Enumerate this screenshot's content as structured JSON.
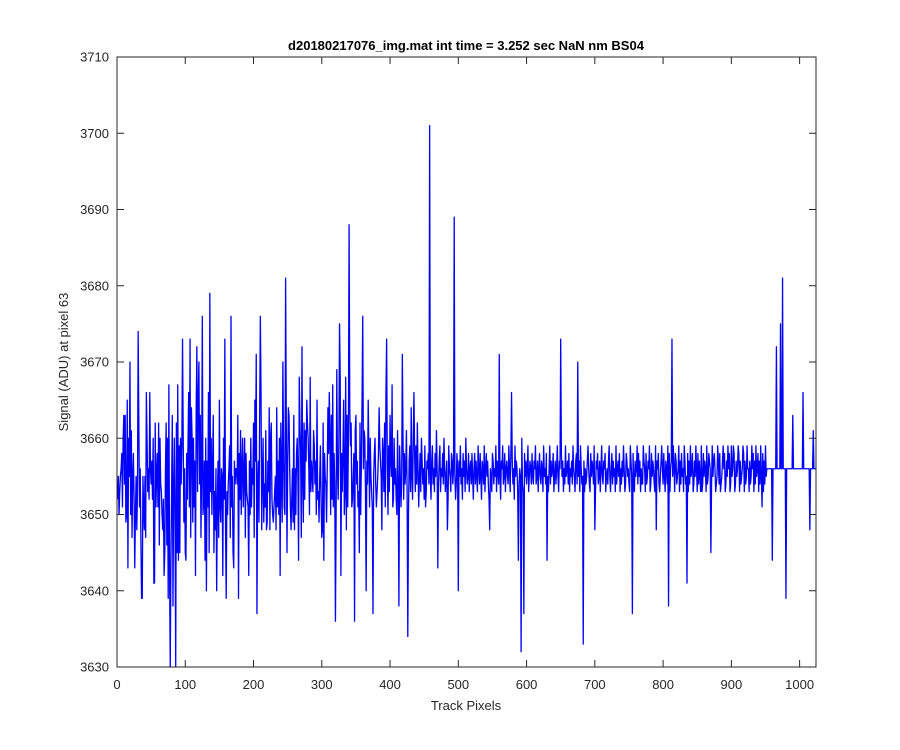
{
  "chart_data": {
    "type": "line",
    "title": "d20180217076_img.mat int time = 3.252 sec  NaN nm BS04",
    "xlabel": "Track Pixels",
    "ylabel": "Signal (ADU) at pixel 63",
    "xlim": [
      0,
      1024
    ],
    "ylim": [
      3630,
      3710
    ],
    "xticks": [
      0,
      100,
      200,
      300,
      400,
      500,
      600,
      700,
      800,
      900,
      1000
    ],
    "yticks": [
      3630,
      3640,
      3650,
      3660,
      3670,
      3680,
      3690,
      3700,
      3710
    ],
    "grid": false,
    "line_color": "#0000ff",
    "series": [
      {
        "x_start": 1,
        "x_step": 1,
        "values": [
          3652,
          3655,
          3650,
          3653,
          3648,
          3656,
          3658,
          3651,
          3660,
          3656,
          3654,
          3663,
          3649,
          3650,
          3665,
          3643,
          3660,
          3655,
          3670,
          3650,
          3661,
          3647,
          3655,
          3658,
          3652,
          3643,
          3650,
          3655,
          3648,
          3653,
          3674,
          3662,
          3651,
          3656,
          3647,
          3660,
          3639,
          3655,
          3651,
          3648,
          3655,
          3647,
          3666,
          3660,
          3653,
          3656,
          3652,
          3662,
          3656,
          3654,
          3657,
          3652,
          3660,
          3641,
          3656,
          3662,
          3651,
          3655,
          3658,
          3651,
          3662,
          3646,
          3660,
          3654,
          3653,
          3650,
          3648,
          3652,
          3642,
          3645,
          3656,
          3662,
          3646,
          3660,
          3639,
          3667,
          3643,
          3662,
          3644,
          3653,
          3663,
          3638,
          3653,
          3660,
          3649,
          3630,
          3662,
          3645,
          3667,
          3654,
          3659,
          3645,
          3660,
          3654,
          3659,
          3673,
          3660,
          3649,
          3656,
          3663,
          3644,
          3658,
          3652,
          3659,
          3666,
          3651,
          3673,
          3647,
          3664,
          3660,
          3649,
          3660,
          3651,
          3657,
          3642,
          3664,
          3672,
          3653,
          3665,
          3641,
          3654,
          3663,
          3647,
          3656,
          3676,
          3650,
          3652,
          3657,
          3644,
          3660,
          3640,
          3657,
          3651,
          3666,
          3645,
          3679,
          3653,
          3660,
          3650,
          3656,
          3663,
          3645,
          3653,
          3648,
          3656,
          3640,
          3651,
          3657,
          3647,
          3665,
          3651,
          3649,
          3656,
          3655,
          3642,
          3660,
          3652,
          3673,
          3648,
          3659,
          3653,
          3650,
          3654,
          3656,
          3659,
          3647,
          3676,
          3651,
          3655,
          3658,
          3643,
          3657,
          3654,
          3656,
          3656,
          3654,
          3663,
          3639,
          3658,
          3652,
          3661,
          3650,
          3656,
          3660,
          3651,
          3655,
          3660,
          3647,
          3658,
          3653,
          3652,
          3651,
          3642,
          3657,
          3650,
          3660,
          3651,
          3656,
          3654,
          3662,
          3647,
          3665,
          3657,
          3671,
          3648,
          3654,
          3657,
          3649,
          3663,
          3653,
          3666,
          3648,
          3655,
          3660,
          3649,
          3654,
          3651,
          3661,
          3648,
          3649,
          3657,
          3653,
          3664,
          3648,
          3660,
          3662,
          3652,
          3650,
          3649,
          3643,
          3653,
          3655,
          3648,
          3664,
          3651,
          3657,
          3650,
          3660,
          3642,
          3662,
          3655,
          3649,
          3670,
          3658,
          3651,
          3650,
          3666,
          3662,
          3645,
          3656,
          3664,
          3663,
          3656,
          3651,
          3665,
          3652,
          3656,
          3649,
          3663,
          3648,
          3656,
          3650,
          3658,
          3660,
          3655,
          3644,
          3668,
          3662,
          3658,
          3647,
          3672,
          3655,
          3649,
          3662,
          3652,
          3661,
          3657,
          3665,
          3662,
          3652,
          3656,
          3650,
          3668,
          3653,
          3657,
          3655,
          3653,
          3661,
          3659,
          3654,
          3657,
          3650,
          3665,
          3652,
          3653,
          3649,
          3655,
          3659,
          3652,
          3663,
          3648,
          3662,
          3644,
          3658,
          3655,
          3654,
          3649,
          3656,
          3664,
          3658,
          3666,
          3660,
          3650,
          3663,
          3652,
          3667,
          3651,
          3658,
          3654,
          3655,
          3650,
          3669,
          3656,
          3652,
          3659,
          3653,
          3668,
          3642,
          3658,
          3653,
          3658,
          3665,
          3650,
          3653,
          3668,
          3648,
          3663,
          3651,
          3660,
          3647,
          3664,
          3659,
          3662,
          3651,
          3652,
          3655,
          3658,
          3649,
          3661,
          3663,
          3654,
          3657,
          3651,
          3653,
          3645,
          3662,
          3650,
          3657,
          3665,
          3648,
          3656,
          3661,
          3660,
          3653,
          3652,
          3657,
          3654,
          3665,
          3658,
          3651,
          3660,
          3655,
          3653,
          3651,
          3663,
          3655,
          3658,
          3660,
          3654,
          3651,
          3653,
          3655,
          3658,
          3664,
          3659,
          3657,
          3655,
          3648,
          3660,
          3656,
          3653,
          3662,
          3651,
          3666,
          3654,
          3656,
          3650,
          3659,
          3653,
          3663,
          3657,
          3655,
          3667,
          3651,
          3658,
          3660,
          3654,
          3656,
          3652,
          3650,
          3661,
          3653,
          3662,
          3659,
          3655,
          3651,
          3654,
          3657,
          3660,
          3652,
          3658,
          3654,
          3656,
          3661,
          3653,
          3655,
          3650,
          3657,
          3659,
          3653,
          3664,
          3655,
          3652,
          3660,
          3656,
          3658,
          3653,
          3659,
          3654,
          3662,
          3656,
          3651,
          3655,
          3658,
          3653,
          3660,
          3657,
          3654,
          3656,
          3652,
          3659,
          3655,
          3653,
          3657,
          3656,
          3658,
          3654,
          3660,
          3655,
          3652,
          3657,
          3659,
          3654,
          3656,
          3653,
          3658,
          3655,
          3661,
          3656,
          3652,
          3654,
          3657,
          3659,
          3653,
          3656,
          3655,
          3658,
          3654,
          3660,
          3656,
          3653,
          3655,
          3657,
          3654,
          3652,
          3659,
          3656,
          3655,
          3653,
          3658,
          3657,
          3654,
          3656,
          3660,
          3655,
          3652,
          3654,
          3658,
          3656,
          3653,
          3657,
          3655,
          3659,
          3654,
          3656,
          3652,
          3658,
          3655,
          3657,
          3653,
          3660,
          3656,
          3654,
          3655,
          3658,
          3653,
          3656,
          3657,
          3654,
          3659,
          3655,
          3652,
          3656,
          3658,
          3654,
          3657,
          3655,
          3653,
          3659,
          3656,
          3654,
          3658,
          3655,
          3652,
          3657,
          3656,
          3654,
          3659,
          3653,
          3656,
          3658,
          3655,
          3657,
          3654,
          3652,
          3660,
          3656,
          3655,
          3653,
          3658,
          3657,
          3654,
          3656,
          3655,
          3659,
          3653,
          3657,
          3656,
          3654,
          3658,
          3655,
          3652,
          3657,
          3656,
          3659,
          3654,
          3655,
          3658,
          3653,
          3656,
          3657,
          3655,
          3654,
          3659,
          3656,
          3653,
          3658,
          3655,
          3657,
          3654,
          3656,
          3652,
          3659,
          3655,
          3657,
          3656,
          3653,
          3658,
          3654,
          3656,
          3655,
          3657,
          3660,
          3654,
          3653,
          3656,
          3658,
          3655,
          3657,
          3654,
          3656,
          3659,
          3653,
          3655,
          3657,
          3656,
          3654,
          3658,
          3655,
          3652,
          3657,
          3656,
          3659,
          3654,
          3655,
          3657,
          3653,
          3656,
          3658,
          3655,
          3654,
          3657,
          3656,
          3653,
          3659,
          3655,
          3656,
          3654,
          3658,
          3657,
          3655,
          3653,
          3656,
          3659,
          3654,
          3657,
          3655,
          3656,
          3658,
          3653,
          3655,
          3657,
          3654,
          3656,
          3659,
          3655,
          3653,
          3657,
          3656,
          3654,
          3658,
          3655,
          3657,
          3653,
          3656,
          3654,
          3659,
          3655,
          3656,
          3657,
          3654,
          3658,
          3653,
          3656,
          3655,
          3657,
          3654,
          3659,
          3656,
          3655,
          3653,
          3657,
          3658,
          3654,
          3656,
          3655,
          3657,
          3653,
          3659,
          3656,
          3654,
          3655,
          3658,
          3657,
          3653,
          3656,
          3654,
          3655,
          3657,
          3659,
          3656,
          3654,
          3653,
          3658,
          3655,
          3657,
          3656,
          3654,
          3659,
          3655,
          3653,
          3657,
          3656,
          3658,
          3654,
          3655,
          3657,
          3653,
          3656,
          3659,
          3655,
          3654,
          3657,
          3656,
          3658,
          3653,
          3655,
          3656,
          3654,
          3657,
          3659,
          3655,
          3653,
          3656,
          3658,
          3654,
          3657,
          3655,
          3656,
          3653,
          3659,
          3654,
          3656,
          3657,
          3655,
          3658,
          3653,
          3656,
          3654,
          3657,
          3655,
          3659,
          3656,
          3653,
          3654,
          3658,
          3657,
          3655,
          3656,
          3654,
          3653,
          3659,
          3657,
          3655,
          3656,
          3658,
          3654,
          3653,
          3657,
          3655,
          3656,
          3659,
          3654,
          3658,
          3655,
          3657,
          3653,
          3656,
          3654,
          3655,
          3659,
          3657,
          3656,
          3653,
          3658,
          3654,
          3655,
          3657,
          3656,
          3659,
          3653,
          3654,
          3658,
          3655,
          3657,
          3656,
          3654,
          3653,
          3659,
          3655,
          3657,
          3656,
          3658,
          3654,
          3653,
          3655,
          3657,
          3659,
          3656,
          3654,
          3658,
          3655,
          3653,
          3657,
          3656,
          3654,
          3659,
          3655,
          3658,
          3653,
          3656,
          3657,
          3654,
          3655,
          3659,
          3656,
          3653,
          3658,
          3657,
          3654,
          3655,
          3656,
          3659,
          3653,
          3657,
          3654,
          3658,
          3655,
          3656,
          3653,
          3659,
          3657,
          3654,
          3655,
          3656,
          3658,
          3653,
          3657,
          3654,
          3659,
          3655,
          3656,
          3658,
          3653,
          3654,
          3657,
          3655,
          3659,
          3656,
          3653,
          3658,
          3654,
          3657,
          3655,
          3656,
          3659,
          3653,
          3654,
          3658,
          3655,
          3657,
          3656,
          3653,
          3659,
          3654,
          3655,
          3658,
          3657,
          3656,
          3653,
          3654,
          3659,
          3655,
          3657,
          3658,
          3656,
          3653,
          3654,
          3655,
          3659,
          3657,
          3656,
          3658,
          3653,
          3654,
          3655,
          3657,
          3659,
          3656,
          3658,
          3653,
          3654,
          3657,
          3655,
          3659,
          3656,
          3658,
          3653,
          3654,
          3657,
          3655,
          3656,
          3659,
          3658,
          3653,
          3654,
          3657,
          3655,
          3656,
          3659,
          3658,
          3653,
          3657,
          3654,
          3655,
          3656,
          3659,
          3658,
          3653,
          3657,
          3654,
          3655,
          3659,
          3656,
          3658,
          3653,
          3657,
          3654,
          3655,
          3659,
          3656,
          3658,
          3653,
          3657,
          3654,
          3659,
          3655,
          3656,
          3658,
          3653,
          3657,
          3654,
          3659,
          3655,
          3656,
          3658,
          3653,
          3657,
          3654,
          3659,
          3655,
          3656
        ]
      }
    ],
    "overrides": [
      [
        340,
        3688
      ],
      [
        348,
        3636
      ],
      [
        458,
        3701
      ],
      [
        494,
        3689
      ],
      [
        426,
        3634
      ],
      [
        592,
        3632
      ],
      [
        683,
        3633
      ],
      [
        247,
        3681
      ],
      [
        975,
        3681
      ],
      [
        78,
        3630
      ],
      [
        966,
        3672
      ],
      [
        972,
        3675
      ],
      [
        980,
        3639
      ],
      [
        990,
        3663
      ],
      [
        1005,
        3666
      ],
      [
        1015,
        3648
      ],
      [
        1020,
        3661
      ],
      [
        808,
        3638
      ],
      [
        813,
        3673
      ],
      [
        588,
        3644
      ],
      [
        596,
        3637
      ],
      [
        578,
        3666
      ],
      [
        500,
        3640
      ],
      [
        520,
        3658
      ],
      [
        546,
        3648
      ],
      [
        560,
        3671
      ],
      [
        610,
        3654
      ],
      [
        630,
        3644
      ],
      [
        650,
        3673
      ],
      [
        675,
        3670
      ],
      [
        700,
        3648
      ],
      [
        720,
        3657
      ],
      [
        738,
        3656
      ],
      [
        755,
        3637
      ],
      [
        770,
        3654
      ],
      [
        790,
        3648
      ],
      [
        835,
        3641
      ],
      [
        855,
        3653
      ],
      [
        870,
        3645
      ],
      [
        882,
        3654
      ],
      [
        900,
        3659
      ],
      [
        925,
        3656
      ],
      [
        945,
        3651
      ],
      [
        960,
        3644
      ],
      [
        413,
        3638
      ],
      [
        418,
        3671
      ],
      [
        435,
        3666
      ],
      [
        452,
        3651
      ],
      [
        470,
        3643
      ],
      [
        484,
        3648
      ],
      [
        375,
        3637
      ],
      [
        390,
        3658
      ],
      [
        395,
        3673
      ],
      [
        405,
        3652
      ],
      [
        320,
        3636
      ],
      [
        326,
        3675
      ],
      [
        360,
        3676
      ],
      [
        365,
        3640
      ],
      [
        300,
        3647
      ],
      [
        280,
        3660
      ],
      [
        255,
        3648
      ],
      [
        230,
        3651
      ],
      [
        205,
        3637
      ],
      [
        210,
        3676
      ],
      [
        160,
        3639
      ],
      [
        170,
        3645
      ],
      [
        120,
        3670
      ],
      [
        100,
        3645
      ],
      [
        90,
        3644
      ],
      [
        55,
        3641
      ],
      [
        48,
        3666
      ],
      [
        31,
        3674
      ],
      [
        36,
        3639
      ],
      [
        20,
        3650
      ],
      [
        10,
        3663
      ],
      [
        5,
        3655
      ]
    ]
  }
}
